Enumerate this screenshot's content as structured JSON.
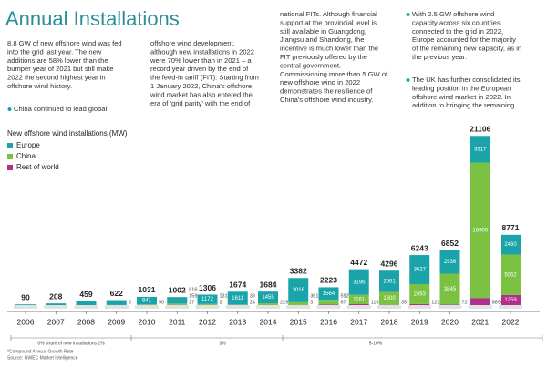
{
  "header": {
    "title": "Annual Installations"
  },
  "columns": [
    [
      {
        "bullet": false,
        "lines": [
          "8.8 GW of new offshore wind was fed",
          "into the grid last year. The new",
          "additions are 58% lower than the",
          "bumper year of 2021 but still make",
          "2022 the second highest year in",
          "offshore wind history."
        ]
      },
      {
        "bullet": true,
        "lines": [
          "China continued to lead global"
        ]
      }
    ],
    [
      {
        "bullet": false,
        "lines": [
          "offshore wind development,",
          "although new installations in 2022",
          "were 70% lower than in 2021 – a",
          "record year driven by the end of",
          "the feed-in tariff (FIT). Starting from",
          "1 January 2022, China's offshore",
          "wind market has also entered the",
          "era of 'grid parity' with the end of"
        ]
      }
    ],
    [
      {
        "bullet": false,
        "lines": [
          "national FITs. Although financial",
          "support at the provincial level is",
          "still available in Guangdong,",
          "Jiangsu and Shandong, the",
          "incentive is much lower than the",
          "FIT previously offered by the",
          "central government.",
          "Commissioning more than 5 GW of",
          "new offshore wind in 2022",
          "demonstrates the resilience of",
          "China's offshore wind industry."
        ]
      }
    ],
    [
      {
        "bullet": true,
        "lines": [
          "With 2.5 GW offshore wind",
          "capacity across six countries",
          "connected to the grid in 2022,",
          "Europe accounted for the majority",
          "of the remaining new capacity, as in",
          "the previous year."
        ]
      },
      {
        "bullet": true,
        "lines": [
          "The UK has further consolidated its",
          "leading position in the European",
          "offshore wind market in 2022. In",
          "addition to bringing the remaining"
        ]
      }
    ]
  ],
  "chart_data": {
    "type": "stacked_bar",
    "title": "New offshore wind installations (MW)",
    "categories": [
      "2006",
      "2007",
      "2008",
      "2009",
      "2010",
      "2011",
      "2012",
      "2013",
      "2014",
      "2015",
      "2016",
      "2017",
      "2018",
      "2019",
      "2020",
      "2021",
      "2022"
    ],
    "totals": [
      90,
      208,
      459,
      622,
      1031,
      1002,
      1306,
      1674,
      1684,
      3382,
      2223,
      4472,
      4296,
      6243,
      6852,
      21106,
      8771
    ],
    "series": [
      {
        "name": "Europe",
        "color": "#1aa3a8",
        "values": [
          90,
          208,
          459,
          616,
          941,
          816,
          1172,
          1611,
          1455,
          3018,
          1564,
          3196,
          2661,
          3627,
          2936,
          3317,
          2460
        ],
        "value_labels": [
          null,
          null,
          null,
          null,
          "941",
          "816",
          "1172",
          "1611",
          "1455",
          "3018",
          "1564",
          "3196",
          "2661",
          "3627",
          "2936",
          "3317",
          "2460"
        ]
      },
      {
        "name": "China",
        "color": "#7cc242",
        "values": [
          null,
          null,
          null,
          6,
          90,
          159,
          131,
          39,
          229,
          361,
          592,
          1161,
          1600,
          2493,
          3845,
          16900,
          5052
        ],
        "value_labels": [
          null,
          null,
          null,
          "6",
          "90",
          "159",
          "131",
          "39",
          "229",
          "361",
          "592",
          "1161",
          "1600",
          "2493",
          "3845",
          "16900",
          "5052"
        ]
      },
      {
        "name": "Rest of world",
        "color": "#b0308a",
        "values": [
          null,
          null,
          null,
          null,
          null,
          27,
          3,
          24,
          null,
          3,
          67,
          115,
          35,
          123,
          72,
          889,
          1259
        ],
        "value_labels": [
          null,
          null,
          null,
          null,
          null,
          "27",
          "3",
          "24",
          null,
          "3",
          "67",
          "115",
          "35",
          "123",
          "72",
          "889",
          "1259"
        ]
      }
    ],
    "annotations": [
      "0% share of new installations 1%",
      "3%",
      "5-10%"
    ],
    "notes": [
      "*Compound Annual Growth Rate",
      "Source: GWEC Market Intelligence"
    ]
  }
}
